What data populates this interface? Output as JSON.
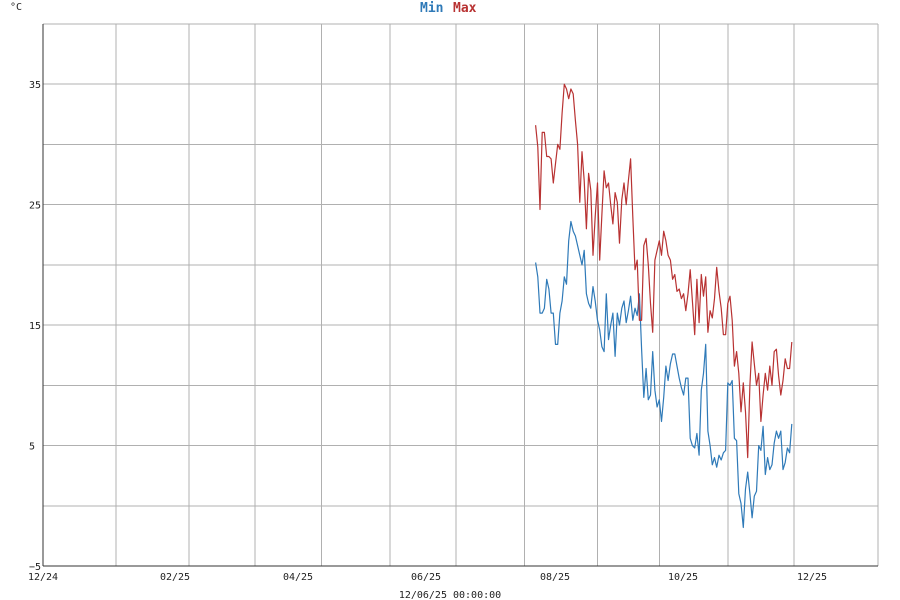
{
  "chart_data": {
    "type": "line",
    "unit_label": "°C",
    "timestamp": "12/06/25 00:00:00",
    "x_tick_labels": [
      "12/24",
      "02/25",
      "04/25",
      "06/25",
      "08/25",
      "10/25",
      "12/25"
    ],
    "y_tick_labels": [
      "35",
      "25",
      "15",
      "5",
      "−5"
    ],
    "ylim": [
      -5,
      40
    ],
    "xlim": [
      0,
      378
    ],
    "y_ticks": [
      35,
      25,
      15,
      5,
      -5
    ],
    "grid": true,
    "legend_position": "top-center",
    "colors": {
      "min": "#2f7ab8",
      "max": "#b83232",
      "grid": "#b0b0b0",
      "axis": "#333333"
    },
    "series": [
      {
        "name": "Min",
        "x": [
          223,
          224,
          225,
          226,
          227,
          228,
          229,
          230,
          231,
          232,
          233,
          234,
          235,
          236,
          237,
          238,
          239,
          240,
          241,
          242,
          243,
          244,
          245,
          246,
          247,
          248,
          249,
          250,
          251,
          252,
          253,
          254,
          255,
          256,
          257,
          258,
          259,
          260,
          261,
          262,
          263,
          264,
          265,
          266,
          267,
          268,
          269,
          270,
          271,
          272,
          273,
          274,
          275,
          276,
          277,
          278,
          279,
          280,
          281,
          282,
          283,
          284,
          285,
          286,
          287,
          288,
          289,
          290,
          291,
          292,
          293,
          294,
          295,
          296,
          297,
          298,
          299,
          300,
          301,
          302,
          303,
          304,
          305,
          306,
          307,
          308,
          309,
          310,
          311,
          312,
          313,
          314,
          315,
          316,
          317,
          318,
          319,
          320,
          321,
          322,
          323,
          324,
          325,
          326,
          327,
          328,
          329,
          330,
          331,
          332,
          333,
          334,
          335,
          336,
          337,
          338,
          339
        ],
        "values": [
          20.2,
          19.0,
          16.0,
          16.0,
          16.4,
          18.8,
          18.0,
          16.0,
          16.0,
          13.4,
          13.4,
          16.0,
          17.0,
          19.0,
          18.4,
          22.0,
          23.6,
          22.8,
          22.4,
          21.6,
          20.8,
          20.0,
          21.2,
          17.6,
          16.8,
          16.4,
          18.2,
          17.0,
          15.4,
          14.6,
          13.2,
          12.8,
          17.6,
          13.8,
          15.0,
          16.0,
          12.4,
          16.0,
          15.0,
          16.4,
          17.0,
          15.2,
          16.2,
          17.4,
          15.4,
          16.4,
          15.8,
          17.6,
          13.0,
          9.0,
          11.4,
          8.8,
          9.2,
          12.8,
          9.6,
          8.2,
          8.8,
          7.0,
          9.0,
          11.6,
          10.4,
          11.8,
          12.6,
          12.6,
          11.6,
          10.6,
          9.8,
          9.2,
          10.6,
          10.6,
          5.6,
          5.0,
          4.8,
          6.0,
          4.2,
          9.6,
          11.0,
          13.4,
          6.2,
          5.0,
          3.4,
          4.0,
          3.2,
          4.2,
          3.8,
          4.4,
          4.6,
          10.2,
          10.0,
          10.4,
          5.6,
          5.4,
          1.0,
          0.2,
          -1.8,
          1.4,
          2.8,
          1.0,
          -1.0,
          0.8,
          1.2,
          5.0,
          4.6,
          6.6,
          2.6,
          4.0,
          3.0,
          3.4,
          5.2,
          6.2,
          5.6,
          6.2,
          3.0,
          3.6,
          4.8,
          4.4,
          6.8
        ],
        "plotted_count": 99
      },
      {
        "name": "Max",
        "x": [
          223,
          224,
          225,
          226,
          227,
          228,
          229,
          230,
          231,
          232,
          233,
          234,
          235,
          236,
          237,
          238,
          239,
          240,
          241,
          242,
          243,
          244,
          245,
          246,
          247,
          248,
          249,
          250,
          251,
          252,
          253,
          254,
          255,
          256,
          257,
          258,
          259,
          260,
          261,
          262,
          263,
          264,
          265,
          266,
          267,
          268,
          269,
          270,
          271,
          272,
          273,
          274,
          275,
          276,
          277,
          278,
          279,
          280,
          281,
          282,
          283,
          284,
          285,
          286,
          287,
          288,
          289,
          290,
          291,
          292,
          293,
          294,
          295,
          296,
          297,
          298,
          299,
          300,
          301,
          302,
          303,
          304,
          305,
          306,
          307,
          308,
          309,
          310,
          311,
          312,
          313,
          314,
          315,
          316,
          317,
          318,
          319,
          320,
          321,
          322,
          323,
          324,
          325,
          326,
          327,
          328,
          329,
          330,
          331,
          332,
          333,
          334,
          335,
          336,
          337,
          338,
          339
        ],
        "values": [
          31.6,
          29.8,
          24.6,
          31.0,
          31.0,
          29.0,
          29.0,
          28.8,
          26.8,
          28.4,
          30.0,
          29.6,
          32.6,
          35.0,
          34.6,
          33.8,
          34.6,
          34.2,
          32.0,
          30.0,
          25.2,
          29.4,
          27.0,
          23.0,
          27.6,
          26.2,
          20.8,
          24.0,
          26.8,
          20.4,
          24.2,
          27.8,
          26.4,
          26.8,
          25.0,
          23.4,
          26.0,
          25.2,
          21.8,
          25.4,
          26.8,
          25.0,
          27.0,
          28.8,
          24.0,
          19.6,
          20.4,
          15.4,
          15.4,
          21.6,
          22.2,
          20.0,
          16.8,
          14.4,
          20.4,
          21.2,
          22.0,
          20.8,
          22.8,
          22.0,
          20.8,
          20.4,
          18.8,
          19.2,
          17.8,
          18.0,
          17.2,
          17.6,
          16.2,
          17.6,
          19.6,
          17.0,
          14.2,
          18.8,
          15.2,
          19.2,
          17.4,
          19.0,
          14.4,
          16.2,
          15.6,
          17.2,
          19.8,
          17.8,
          16.4,
          14.2,
          14.2,
          16.8,
          17.4,
          15.4,
          11.6,
          12.8,
          11.0,
          7.8,
          10.2,
          7.8,
          4.0,
          10.0,
          13.6,
          11.8,
          10.0,
          11.0,
          7.0,
          9.2,
          11.0,
          9.6,
          11.6,
          10.0,
          12.8,
          13.0,
          10.8,
          9.2,
          10.4,
          12.2,
          11.4,
          11.4,
          13.6
        ],
        "plotted_count": 99
      }
    ]
  }
}
